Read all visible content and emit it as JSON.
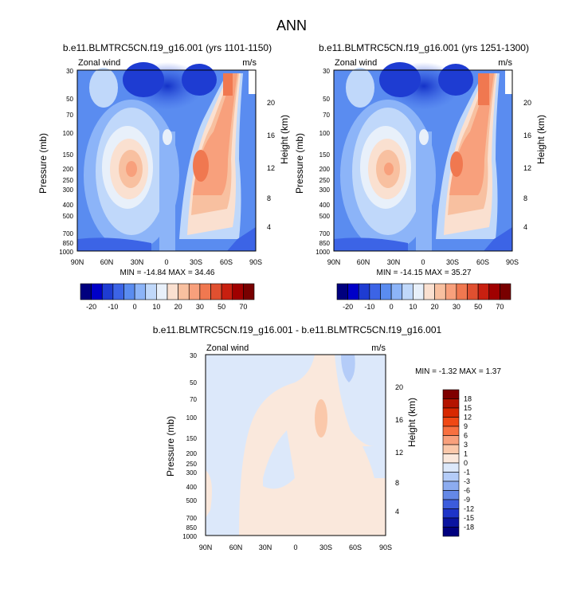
{
  "page_title": "ANN",
  "chart_data": [
    {
      "type": "heatmap",
      "title": "b.e11.BLMTRC5CN.f19_g16.001 (yrs 1101-1150)",
      "subtitle_left": "Zonal wind",
      "subtitle_right": "m/s",
      "ylabel": "Pressure (mb)",
      "ylabel_right": "Height (km)",
      "x_ticks": [
        "90N",
        "60N",
        "30N",
        "0",
        "30S",
        "60S",
        "90S"
      ],
      "y_ticks": [
        "30",
        "50",
        "70",
        "100",
        "150",
        "200",
        "250",
        "300",
        "400",
        "500",
        "700",
        "850",
        "1000"
      ],
      "height_ticks": [
        "20",
        "16",
        "12",
        "8",
        "4"
      ],
      "stats_text": "MIN = -14.84  MAX = 34.46",
      "min": -14.84,
      "max": 34.46,
      "colorbar_labels": [
        "-20",
        "-10",
        "0",
        "10",
        "20",
        "30",
        "50",
        "70"
      ],
      "colorbar_colors": [
        "#00007f",
        "#0000c8",
        "#1e3cd2",
        "#3c64e6",
        "#5a8cf0",
        "#8cb4f8",
        "#c0d8fa",
        "#e8f0fa",
        "#fae0d0",
        "#f8c0a0",
        "#f8a07c",
        "#f07850",
        "#e05030",
        "#c82010",
        "#a00000",
        "#780000"
      ]
    },
    {
      "type": "heatmap",
      "title": "b.e11.BLMTRC5CN.f19_g16.001 (yrs 1251-1300)",
      "subtitle_left": "Zonal wind",
      "subtitle_right": "m/s",
      "ylabel": "Pressure (mb)",
      "ylabel_right": "Height (km)",
      "x_ticks": [
        "90N",
        "60N",
        "30N",
        "0",
        "30S",
        "60S",
        "90S"
      ],
      "y_ticks": [
        "30",
        "50",
        "70",
        "100",
        "150",
        "200",
        "250",
        "300",
        "400",
        "500",
        "700",
        "850",
        "1000"
      ],
      "height_ticks": [
        "20",
        "16",
        "12",
        "8",
        "4"
      ],
      "stats_text": "MIN = -14.15  MAX = 35.27",
      "min": -14.15,
      "max": 35.27,
      "colorbar_labels": [
        "-20",
        "-10",
        "0",
        "10",
        "20",
        "30",
        "50",
        "70"
      ],
      "colorbar_colors": [
        "#00007f",
        "#0000c8",
        "#1e3cd2",
        "#3c64e6",
        "#5a8cf0",
        "#8cb4f8",
        "#c0d8fa",
        "#e8f0fa",
        "#fae0d0",
        "#f8c0a0",
        "#f8a07c",
        "#f07850",
        "#e05030",
        "#c82010",
        "#a00000",
        "#780000"
      ]
    },
    {
      "type": "heatmap",
      "title": "b.e11.BLMTRC5CN.f19_g16.001 - b.e11.BLMTRC5CN.f19_g16.001",
      "subtitle_left": "Zonal wind",
      "subtitle_right": "m/s",
      "ylabel": "Pressure (mb)",
      "ylabel_right": "Height (km)",
      "x_ticks": [
        "90N",
        "60N",
        "30N",
        "0",
        "30S",
        "60S",
        "90S"
      ],
      "y_ticks": [
        "30",
        "50",
        "70",
        "100",
        "150",
        "200",
        "250",
        "300",
        "400",
        "500",
        "700",
        "850",
        "1000"
      ],
      "height_ticks": [
        "20",
        "16",
        "12",
        "8",
        "4"
      ],
      "stats_text": "MIN = -1.32  MAX =  1.37",
      "min": -1.32,
      "max": 1.37,
      "colorbar_labels": [
        "18",
        "15",
        "12",
        "9",
        "6",
        "3",
        "1",
        "0",
        "-1",
        "-3",
        "-6",
        "-9",
        "-12",
        "-15",
        "-18"
      ],
      "colorbar_colors": [
        "#7f0000",
        "#b41400",
        "#d82800",
        "#f04814",
        "#f87040",
        "#f8a07c",
        "#fac8aa",
        "#fae8dc",
        "#dce8fa",
        "#b4ccf8",
        "#8cacf0",
        "#6488e6",
        "#3c5cdc",
        "#1e34c8",
        "#0a14a0",
        "#00007f"
      ]
    }
  ]
}
